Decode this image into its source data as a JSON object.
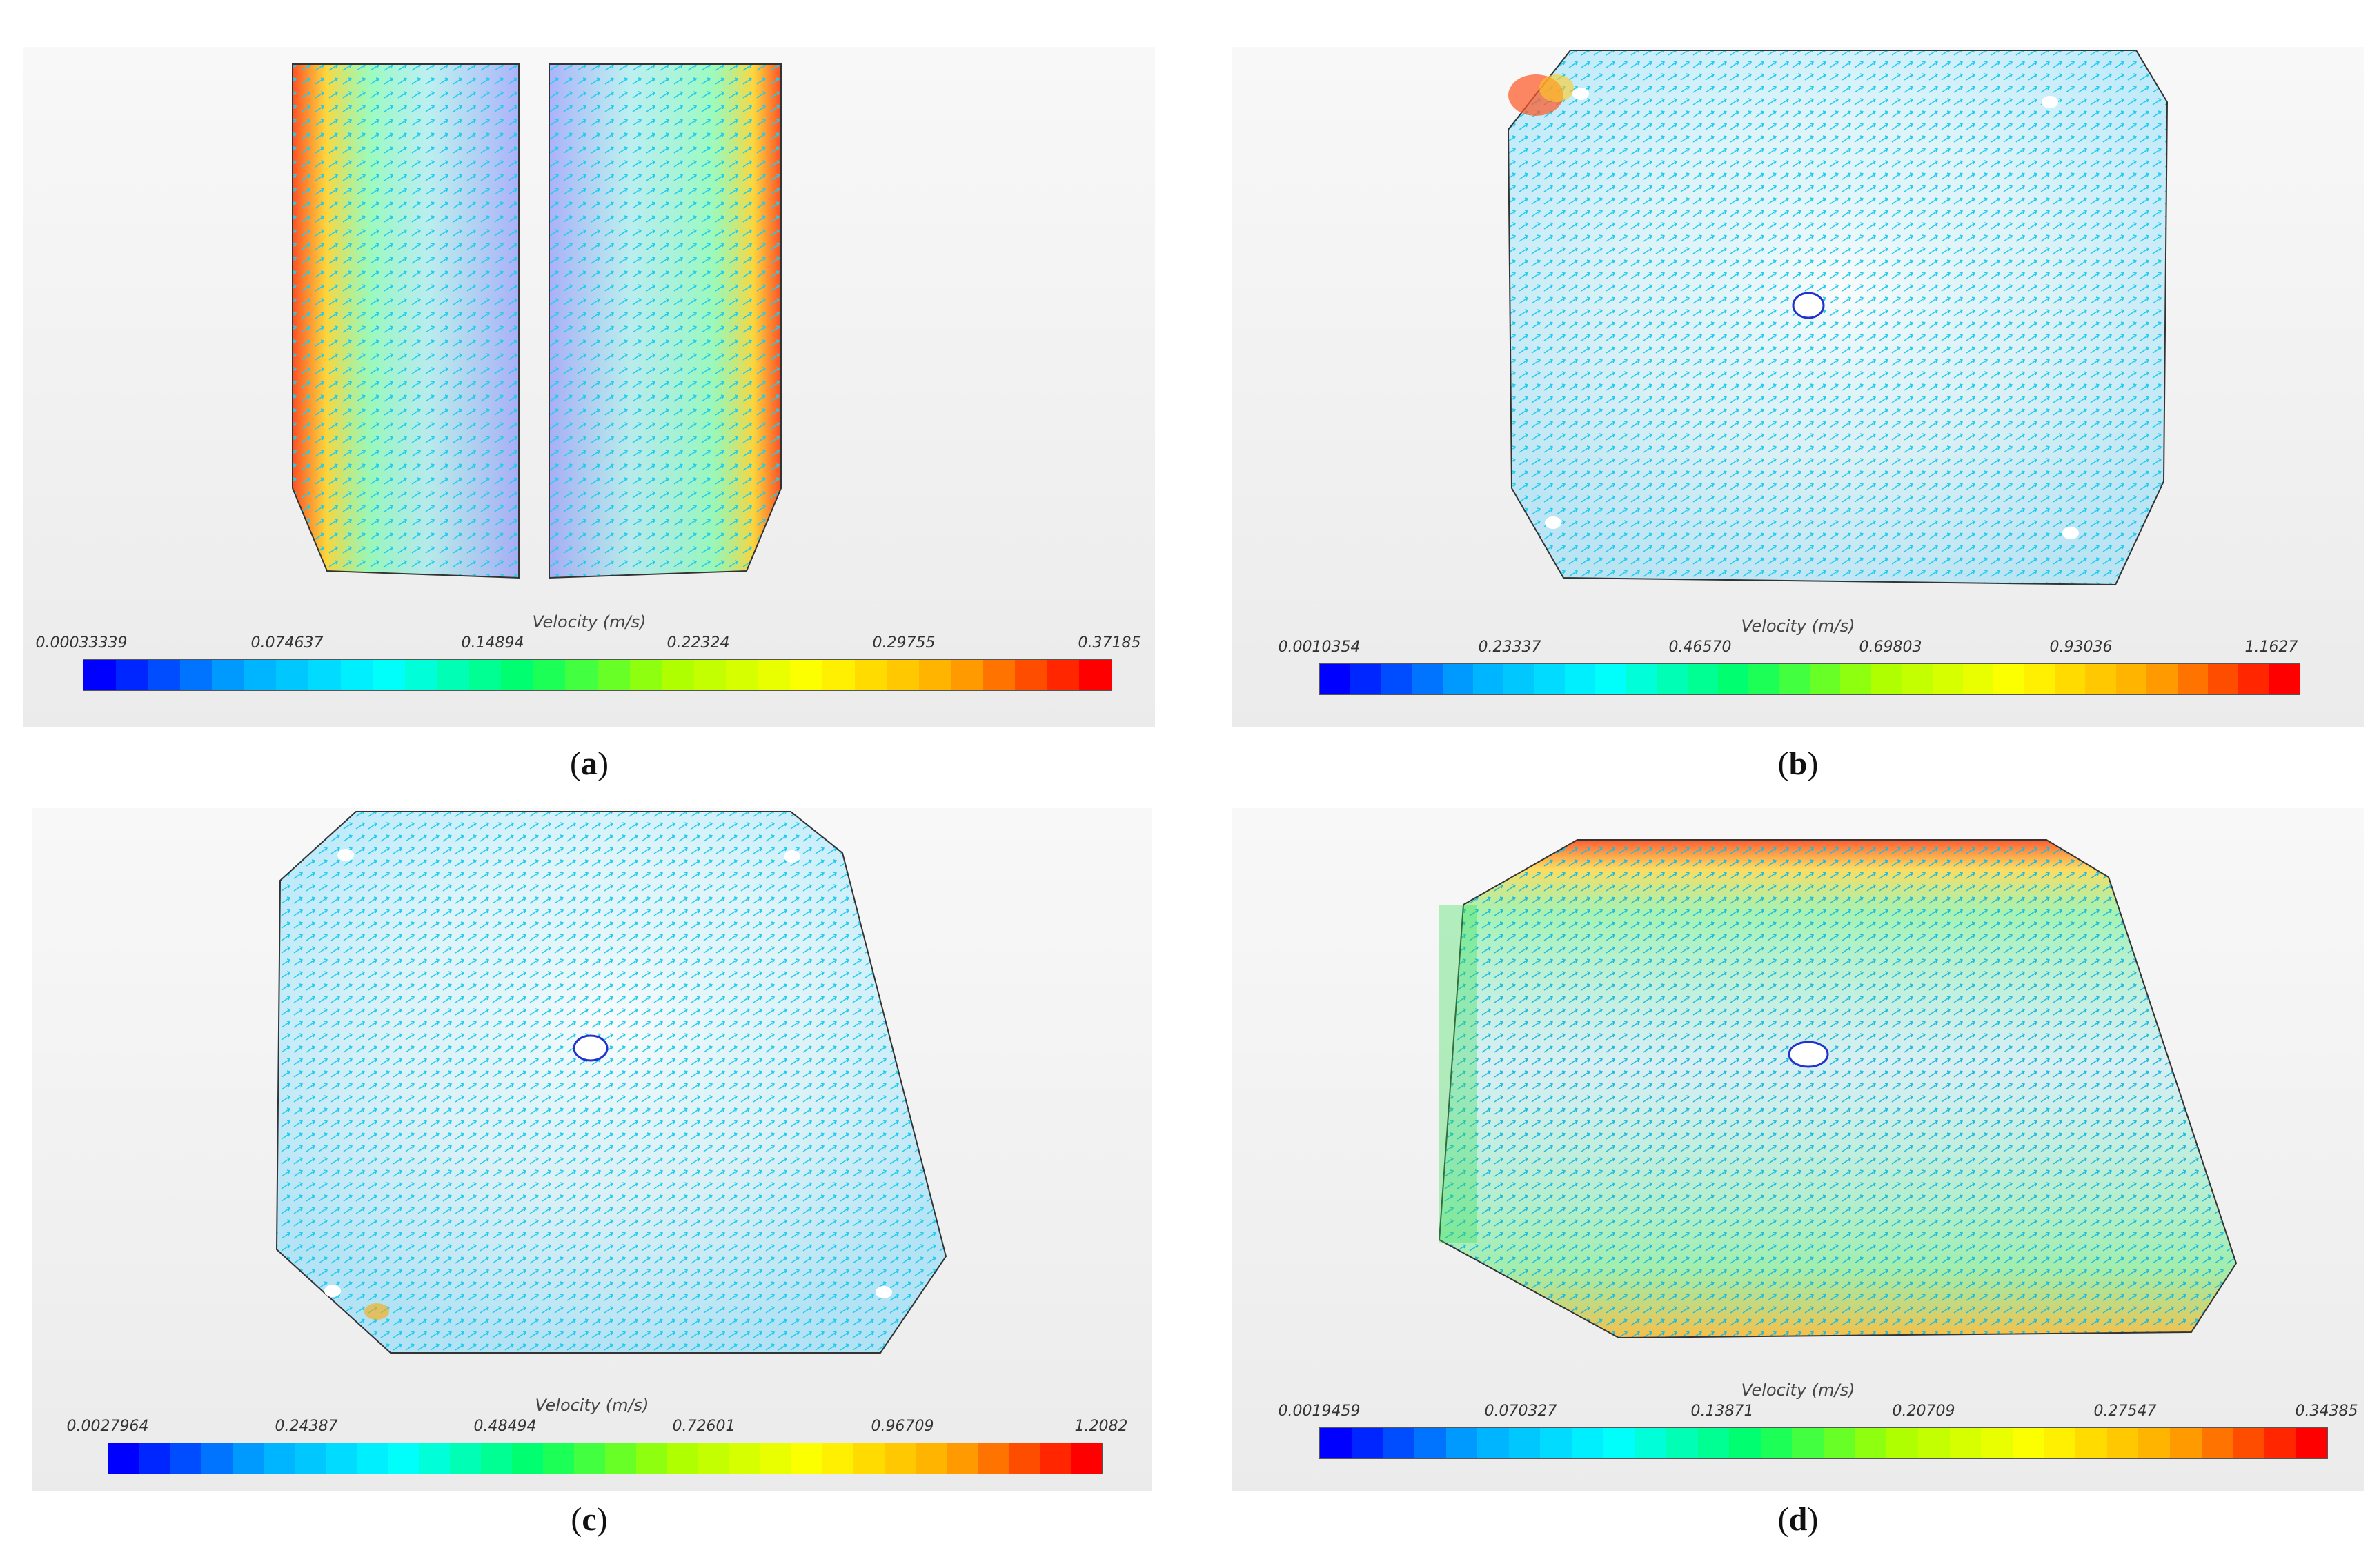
{
  "panels": [
    {
      "id": "a",
      "caption": "a",
      "colorbar_title": "Velocity (m/s)",
      "ticks": [
        "0.00033339",
        "0.074637",
        "0.14894",
        "0.22324",
        "0.29755",
        "0.37185"
      ]
    },
    {
      "id": "b",
      "caption": "b",
      "colorbar_title": "Velocity (m/s)",
      "ticks": [
        "0.0010354",
        "0.23337",
        "0.46570",
        "0.69803",
        "0.93036",
        "1.1627"
      ]
    },
    {
      "id": "c",
      "caption": "c",
      "colorbar_title": "Velocity (m/s)",
      "ticks": [
        "0.0027964",
        "0.24387",
        "0.48494",
        "0.72601",
        "0.96709",
        "1.2082"
      ]
    },
    {
      "id": "d",
      "caption": "d",
      "colorbar_title": "Velocity (m/s)",
      "ticks": [
        "0.0019459",
        "0.070327",
        "0.13871",
        "0.20709",
        "0.27547",
        "0.34385"
      ]
    }
  ],
  "colormap": [
    "#0000ff",
    "#00aaff",
    "#00ffff",
    "#00ff66",
    "#aaff00",
    "#ffff00",
    "#ffaa00",
    "#ff0000"
  ]
}
